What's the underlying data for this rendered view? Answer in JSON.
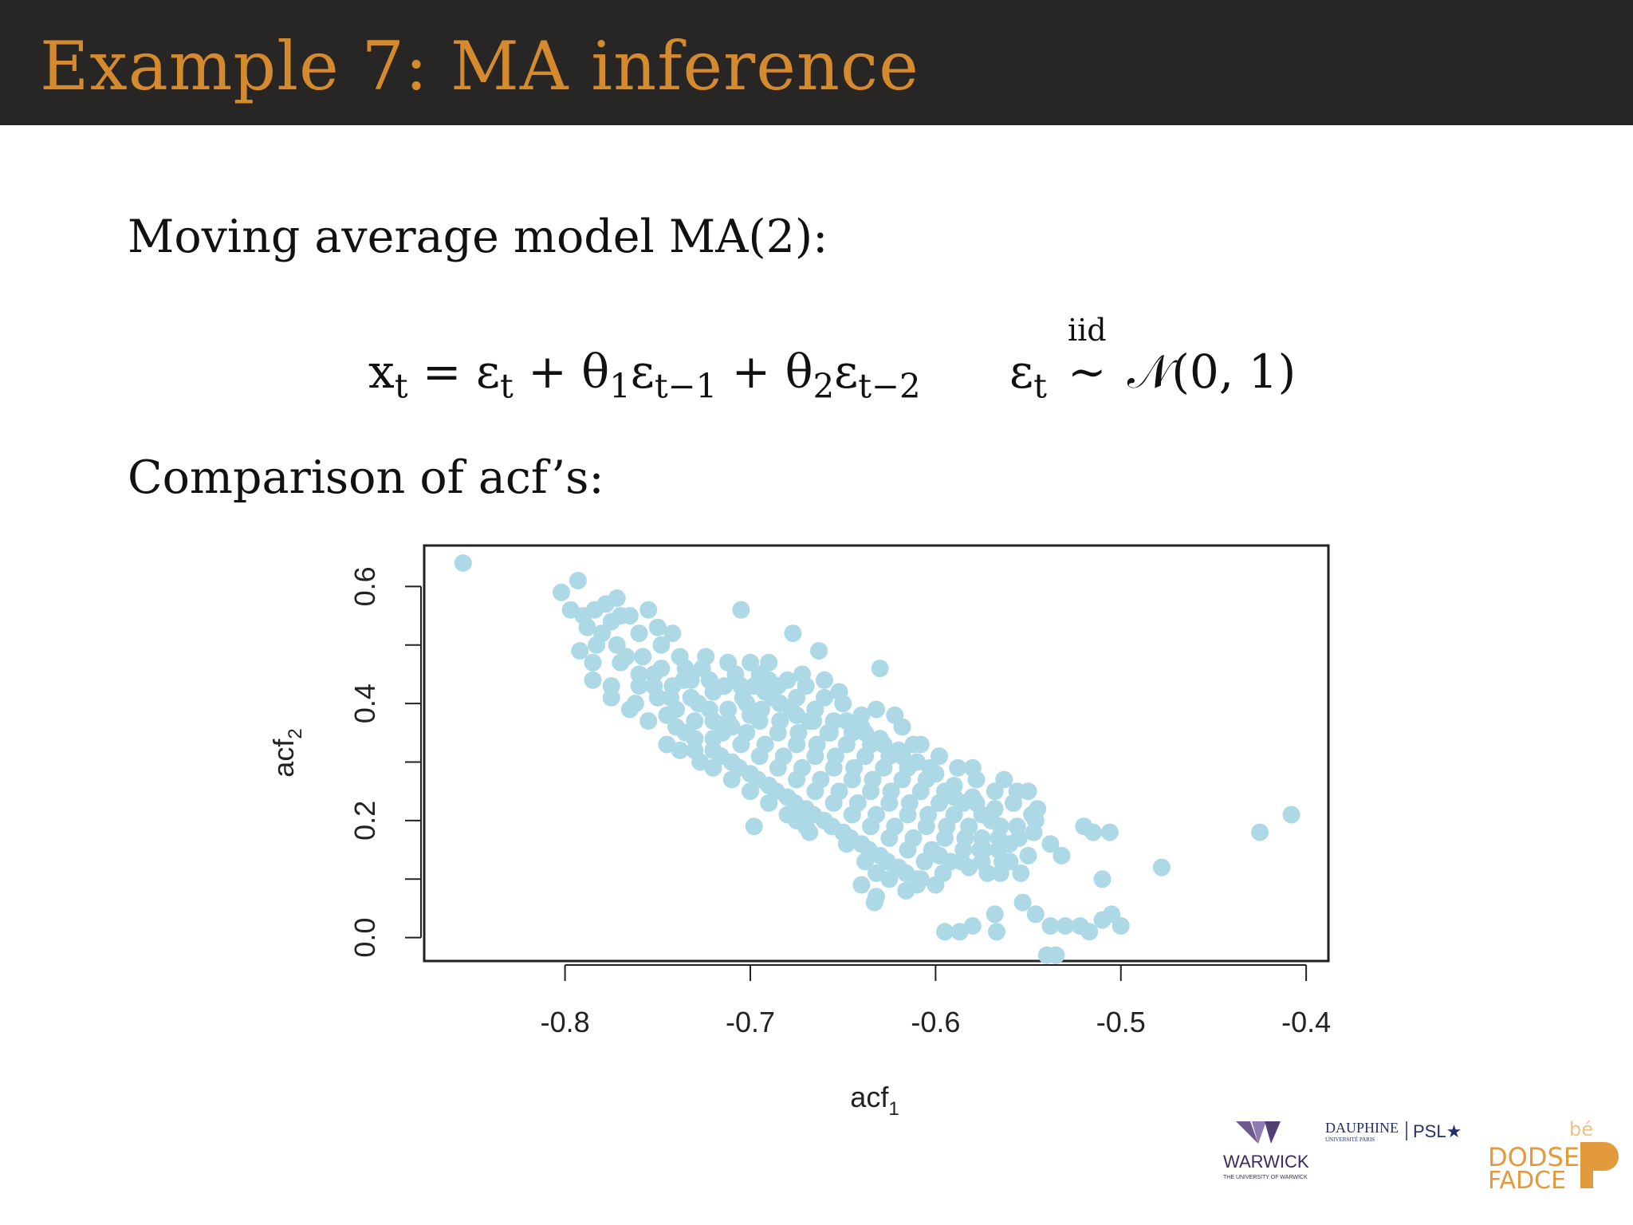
{
  "slide": {
    "title": "Example 7: MA inference",
    "intro_text": "Moving average model MA(2):",
    "equation_lhs": "x",
    "equation_lhs_sub": "t",
    "equation_rhs_1": " = ε",
    "equation_rhs_1_sub": "t",
    "equation_rhs_2": " + θ",
    "equation_rhs_2_sub": "1",
    "equation_rhs_3": "ε",
    "equation_rhs_3_sub": "t−1",
    "equation_rhs_4": " + θ",
    "equation_rhs_4_sub": "2",
    "equation_rhs_5": "ε",
    "equation_rhs_5_sub": "t−2",
    "noise_symbol": "ε",
    "noise_sub": "t",
    "noise_rel_top": "iid",
    "noise_rel": "∼",
    "noise_dist": "𝒩(0, 1)",
    "comparison_text": "Comparison of acf’s:"
  },
  "logos": {
    "warwick_name": "WARWICK",
    "warwick_sub": "THE UNIVERSITY OF WARWICK",
    "dauphine_name": "DAUPHINE",
    "dauphine_sub": "UNIVERSITÉ PARIS",
    "psl_name": "PSL★",
    "pfarce_top": "bé",
    "pfarce_mid": "DODSE",
    "pfarce_bot": "FADCE"
  },
  "colors": {
    "title": "#d68a2e",
    "header_bg": "#272625",
    "points": "#add8e6"
  },
  "chart_data": {
    "type": "scatter",
    "xlabel": "acf",
    "xlabel_sub": "1",
    "ylabel": "acf",
    "ylabel_sub": "2",
    "xlim": [
      -0.876,
      -0.388
    ],
    "ylim": [
      -0.04,
      0.67
    ],
    "xticks": [
      -0.8,
      -0.7,
      -0.6,
      -0.5,
      -0.4
    ],
    "xtick_labels": [
      "-0.8",
      "-0.7",
      "-0.6",
      "-0.5",
      "-0.4"
    ],
    "yticks": [
      0.0,
      0.2,
      0.4,
      0.6
    ],
    "ytick_labels": [
      "0.0",
      "0.2",
      "0.4",
      "0.6"
    ],
    "grid": false,
    "point_color": "#add8e6",
    "points": [
      [
        -0.855,
        0.64
      ],
      [
        -0.793,
        0.61
      ],
      [
        -0.797,
        0.56
      ],
      [
        -0.79,
        0.55
      ],
      [
        -0.802,
        0.59
      ],
      [
        -0.784,
        0.56
      ],
      [
        -0.772,
        0.58
      ],
      [
        -0.755,
        0.56
      ],
      [
        -0.705,
        0.56
      ],
      [
        -0.677,
        0.52
      ],
      [
        -0.663,
        0.49
      ],
      [
        -0.63,
        0.46
      ],
      [
        -0.742,
        0.52
      ],
      [
        -0.792,
        0.49
      ],
      [
        -0.785,
        0.47
      ],
      [
        -0.767,
        0.48
      ],
      [
        -0.775,
        0.43
      ],
      [
        -0.762,
        0.4
      ],
      [
        -0.745,
        0.38
      ],
      [
        -0.738,
        0.32
      ],
      [
        -0.727,
        0.3
      ],
      [
        -0.698,
        0.19
      ],
      [
        -0.675,
        0.2
      ],
      [
        -0.668,
        0.18
      ],
      [
        -0.648,
        0.16
      ],
      [
        -0.638,
        0.13
      ],
      [
        -0.632,
        0.11
      ],
      [
        -0.633,
        0.06
      ],
      [
        -0.61,
        0.09
      ],
      [
        -0.6,
        0.09
      ],
      [
        -0.595,
        0.01
      ],
      [
        -0.587,
        0.01
      ],
      [
        -0.58,
        0.02
      ],
      [
        -0.568,
        0.04
      ],
      [
        -0.567,
        0.01
      ],
      [
        -0.553,
        0.06
      ],
      [
        -0.546,
        0.04
      ],
      [
        -0.538,
        0.02
      ],
      [
        -0.53,
        0.02
      ],
      [
        -0.54,
        -0.03
      ],
      [
        -0.535,
        -0.03
      ],
      [
        -0.522,
        0.02
      ],
      [
        -0.517,
        0.01
      ],
      [
        -0.51,
        0.03
      ],
      [
        -0.505,
        0.04
      ],
      [
        -0.5,
        0.02
      ],
      [
        -0.51,
        0.1
      ],
      [
        -0.52,
        0.19
      ],
      [
        -0.515,
        0.18
      ],
      [
        -0.506,
        0.18
      ],
      [
        -0.478,
        0.12
      ],
      [
        -0.425,
        0.18
      ],
      [
        -0.408,
        0.21
      ],
      [
        -0.58,
        0.29
      ],
      [
        -0.563,
        0.27
      ],
      [
        -0.556,
        0.25
      ],
      [
        -0.55,
        0.25
      ],
      [
        -0.545,
        0.22
      ],
      [
        -0.538,
        0.16
      ],
      [
        -0.532,
        0.14
      ],
      [
        -0.547,
        0.18
      ],
      [
        -0.568,
        0.22
      ],
      [
        -0.578,
        0.23
      ],
      [
        -0.59,
        0.24
      ],
      [
        -0.603,
        0.29
      ],
      [
        -0.612,
        0.33
      ],
      [
        -0.622,
        0.38
      ],
      [
        -0.618,
        0.36
      ],
      [
        -0.632,
        0.39
      ],
      [
        -0.64,
        0.38
      ],
      [
        -0.652,
        0.42
      ],
      [
        -0.66,
        0.44
      ],
      [
        -0.672,
        0.45
      ],
      [
        -0.69,
        0.47
      ],
      [
        -0.7,
        0.47
      ],
      [
        -0.712,
        0.47
      ],
      [
        -0.722,
        0.44
      ],
      [
        -0.732,
        0.44
      ],
      [
        -0.72,
        0.42
      ],
      [
        -0.752,
        0.43
      ],
      [
        -0.76,
        0.45
      ],
      [
        -0.772,
        0.5
      ],
      [
        -0.76,
        0.52
      ],
      [
        -0.748,
        0.5
      ],
      [
        -0.735,
        0.46
      ],
      [
        -0.743,
        0.41
      ],
      [
        -0.728,
        0.4
      ],
      [
        -0.712,
        0.39
      ],
      [
        -0.702,
        0.4
      ],
      [
        -0.692,
        0.42
      ],
      [
        -0.684,
        0.4
      ],
      [
        -0.675,
        0.38
      ],
      [
        -0.666,
        0.37
      ],
      [
        -0.657,
        0.35
      ],
      [
        -0.648,
        0.33
      ],
      [
        -0.638,
        0.31
      ],
      [
        -0.628,
        0.29
      ],
      [
        -0.618,
        0.27
      ],
      [
        -0.608,
        0.25
      ],
      [
        -0.598,
        0.23
      ],
      [
        -0.59,
        0.21
      ],
      [
        -0.582,
        0.19
      ],
      [
        -0.575,
        0.17
      ],
      [
        -0.566,
        0.15
      ],
      [
        -0.56,
        0.13
      ],
      [
        -0.572,
        0.11
      ],
      [
        -0.582,
        0.12
      ],
      [
        -0.592,
        0.13
      ],
      [
        -0.602,
        0.15
      ],
      [
        -0.612,
        0.17
      ],
      [
        -0.622,
        0.19
      ],
      [
        -0.632,
        0.21
      ],
      [
        -0.642,
        0.23
      ],
      [
        -0.652,
        0.25
      ],
      [
        -0.662,
        0.27
      ],
      [
        -0.672,
        0.29
      ],
      [
        -0.682,
        0.31
      ],
      [
        -0.692,
        0.33
      ],
      [
        -0.702,
        0.35
      ],
      [
        -0.712,
        0.37
      ],
      [
        -0.722,
        0.39
      ],
      [
        -0.732,
        0.41
      ],
      [
        -0.742,
        0.43
      ],
      [
        -0.752,
        0.45
      ],
      [
        -0.74,
        0.36
      ],
      [
        -0.73,
        0.34
      ],
      [
        -0.72,
        0.32
      ],
      [
        -0.71,
        0.3
      ],
      [
        -0.7,
        0.28
      ],
      [
        -0.69,
        0.26
      ],
      [
        -0.68,
        0.24
      ],
      [
        -0.67,
        0.22
      ],
      [
        -0.66,
        0.2
      ],
      [
        -0.65,
        0.18
      ],
      [
        -0.64,
        0.16
      ],
      [
        -0.63,
        0.14
      ],
      [
        -0.62,
        0.12
      ],
      [
        -0.61,
        0.1
      ],
      [
        -0.695,
        0.37
      ],
      [
        -0.685,
        0.35
      ],
      [
        -0.675,
        0.33
      ],
      [
        -0.665,
        0.31
      ],
      [
        -0.655,
        0.29
      ],
      [
        -0.645,
        0.27
      ],
      [
        -0.635,
        0.25
      ],
      [
        -0.625,
        0.23
      ],
      [
        -0.615,
        0.21
      ],
      [
        -0.605,
        0.19
      ],
      [
        -0.595,
        0.17
      ],
      [
        -0.585,
        0.15
      ],
      [
        -0.575,
        0.13
      ],
      [
        -0.565,
        0.11
      ],
      [
        -0.705,
        0.33
      ],
      [
        -0.695,
        0.31
      ],
      [
        -0.685,
        0.29
      ],
      [
        -0.675,
        0.27
      ],
      [
        -0.665,
        0.25
      ],
      [
        -0.655,
        0.23
      ],
      [
        -0.645,
        0.21
      ],
      [
        -0.635,
        0.19
      ],
      [
        -0.625,
        0.17
      ],
      [
        -0.615,
        0.15
      ],
      [
        -0.715,
        0.35
      ],
      [
        -0.705,
        0.43
      ],
      [
        -0.695,
        0.45
      ],
      [
        -0.685,
        0.43
      ],
      [
        -0.675,
        0.41
      ],
      [
        -0.665,
        0.39
      ],
      [
        -0.655,
        0.37
      ],
      [
        -0.645,
        0.35
      ],
      [
        -0.635,
        0.33
      ],
      [
        -0.625,
        0.31
      ],
      [
        -0.615,
        0.29
      ],
      [
        -0.605,
        0.27
      ],
      [
        -0.595,
        0.25
      ],
      [
        -0.585,
        0.23
      ],
      [
        -0.575,
        0.21
      ],
      [
        -0.565,
        0.19
      ],
      [
        -0.555,
        0.17
      ],
      [
        -0.68,
        0.21
      ],
      [
        -0.67,
        0.19
      ],
      [
        -0.69,
        0.23
      ],
      [
        -0.7,
        0.25
      ],
      [
        -0.71,
        0.27
      ],
      [
        -0.72,
        0.29
      ],
      [
        -0.73,
        0.37
      ],
      [
        -0.74,
        0.39
      ],
      [
        -0.75,
        0.41
      ],
      [
        -0.76,
        0.43
      ],
      [
        -0.77,
        0.47
      ],
      [
        -0.78,
        0.52
      ],
      [
        -0.775,
        0.54
      ],
      [
        -0.765,
        0.55
      ],
      [
        -0.75,
        0.53
      ],
      [
        -0.738,
        0.48
      ],
      [
        -0.726,
        0.46
      ],
      [
        -0.714,
        0.43
      ],
      [
        -0.704,
        0.41
      ],
      [
        -0.694,
        0.39
      ],
      [
        -0.684,
        0.37
      ],
      [
        -0.674,
        0.35
      ],
      [
        -0.664,
        0.33
      ],
      [
        -0.654,
        0.31
      ],
      [
        -0.644,
        0.29
      ],
      [
        -0.634,
        0.27
      ],
      [
        -0.624,
        0.25
      ],
      [
        -0.614,
        0.23
      ],
      [
        -0.604,
        0.21
      ],
      [
        -0.594,
        0.19
      ],
      [
        -0.584,
        0.17
      ],
      [
        -0.574,
        0.15
      ],
      [
        -0.564,
        0.13
      ],
      [
        -0.554,
        0.11
      ],
      [
        -0.65,
        0.4
      ],
      [
        -0.64,
        0.36
      ],
      [
        -0.63,
        0.34
      ],
      [
        -0.62,
        0.32
      ],
      [
        -0.61,
        0.3
      ],
      [
        -0.6,
        0.28
      ],
      [
        -0.59,
        0.26
      ],
      [
        -0.58,
        0.24
      ],
      [
        -0.57,
        0.2
      ],
      [
        -0.56,
        0.16
      ],
      [
        -0.55,
        0.14
      ],
      [
        -0.66,
        0.41
      ],
      [
        -0.67,
        0.43
      ],
      [
        -0.68,
        0.44
      ],
      [
        -0.69,
        0.44
      ],
      [
        -0.7,
        0.38
      ],
      [
        -0.71,
        0.36
      ],
      [
        -0.72,
        0.34
      ],
      [
        -0.73,
        0.32
      ],
      [
        -0.716,
        0.31
      ],
      [
        -0.706,
        0.29
      ],
      [
        -0.696,
        0.27
      ],
      [
        -0.686,
        0.25
      ],
      [
        -0.676,
        0.23
      ],
      [
        -0.666,
        0.21
      ],
      [
        -0.656,
        0.19
      ],
      [
        -0.646,
        0.17
      ],
      [
        -0.636,
        0.15
      ],
      [
        -0.626,
        0.13
      ],
      [
        -0.616,
        0.11
      ],
      [
        -0.606,
        0.13
      ],
      [
        -0.596,
        0.11
      ],
      [
        -0.586,
        0.13
      ],
      [
        -0.576,
        0.15
      ],
      [
        -0.566,
        0.17
      ],
      [
        -0.556,
        0.19
      ],
      [
        -0.546,
        0.2
      ],
      [
        -0.64,
        0.09
      ],
      [
        -0.632,
        0.07
      ],
      [
        -0.625,
        0.1
      ],
      [
        -0.616,
        0.08
      ],
      [
        -0.608,
        0.1
      ],
      [
        -0.598,
        0.14
      ],
      [
        -0.72,
        0.37
      ],
      [
        -0.735,
        0.35
      ],
      [
        -0.745,
        0.33
      ],
      [
        -0.755,
        0.37
      ],
      [
        -0.765,
        0.39
      ],
      [
        -0.775,
        0.41
      ],
      [
        -0.785,
        0.44
      ],
      [
        -0.783,
        0.5
      ],
      [
        -0.788,
        0.53
      ],
      [
        -0.778,
        0.57
      ],
      [
        -0.77,
        0.55
      ],
      [
        -0.758,
        0.48
      ],
      [
        -0.748,
        0.46
      ],
      [
        -0.736,
        0.44
      ],
      [
        -0.724,
        0.48
      ],
      [
        -0.708,
        0.45
      ],
      [
        -0.698,
        0.43
      ],
      [
        -0.688,
        0.41
      ],
      [
        -0.678,
        0.39
      ],
      [
        -0.668,
        0.37
      ],
      [
        -0.658,
        0.35
      ],
      [
        -0.648,
        0.37
      ],
      [
        -0.638,
        0.35
      ],
      [
        -0.628,
        0.33
      ],
      [
        -0.618,
        0.31
      ],
      [
        -0.608,
        0.33
      ],
      [
        -0.598,
        0.31
      ],
      [
        -0.588,
        0.29
      ],
      [
        -0.578,
        0.27
      ],
      [
        -0.568,
        0.25
      ],
      [
        -0.558,
        0.23
      ],
      [
        -0.548,
        0.21
      ]
    ]
  }
}
